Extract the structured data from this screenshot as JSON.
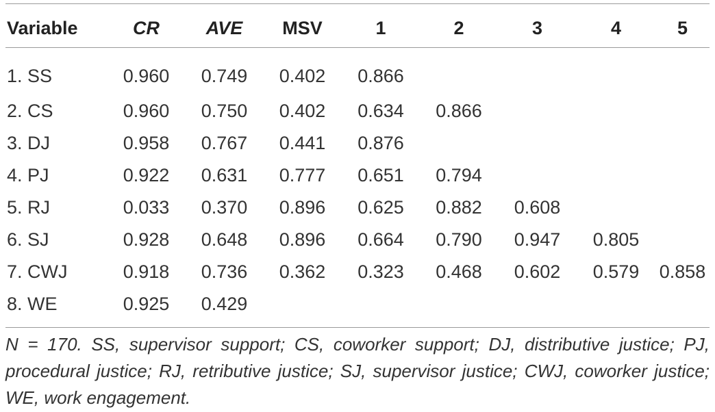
{
  "table": {
    "headers": [
      "Variable",
      "CR",
      "AVE",
      "MSV",
      "1",
      "2",
      "3",
      "4",
      "5"
    ],
    "rows": [
      [
        "1. SS",
        "0.960",
        "0.749",
        "0.402",
        "0.866",
        "",
        "",
        "",
        ""
      ],
      [
        "2. CS",
        "0.960",
        "0.750",
        "0.402",
        "0.634",
        "0.866",
        "",
        "",
        ""
      ],
      [
        "3. DJ",
        "0.958",
        "0.767",
        "0.441",
        "0.876",
        "",
        "",
        "",
        ""
      ],
      [
        "4. PJ",
        "0.922",
        "0.631",
        "0.777",
        "0.651",
        "0.794",
        "",
        "",
        ""
      ],
      [
        "5. RJ",
        "0.033",
        "0.370",
        "0.896",
        "0.625",
        "0.882",
        "0.608",
        "",
        ""
      ],
      [
        "6. SJ",
        "0.928",
        "0.648",
        "0.896",
        "0.664",
        "0.790",
        "0.947",
        "0.805",
        ""
      ],
      [
        "7. CWJ",
        "0.918",
        "0.736",
        "0.362",
        "0.323",
        "0.468",
        "0.602",
        "0.579",
        "0.858"
      ],
      [
        "8. WE",
        "0.925",
        "0.429",
        "",
        "",
        "",
        "",
        "",
        ""
      ]
    ]
  },
  "note": "N = 170. SS, supervisor support; CS, coworker support; DJ, distributive justice; PJ, procedural justice; RJ, retributive justice; SJ, supervisor justice; CWJ, coworker justice; WE, work engagement."
}
